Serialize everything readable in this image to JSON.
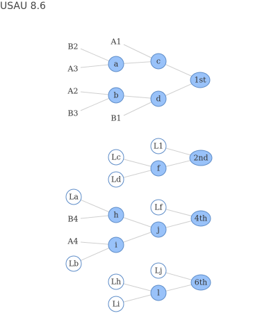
{
  "title": "USAU 8.6",
  "colors": {
    "node_fill": "#99c2f9",
    "node_stroke": "#5d8cc8",
    "edge": "#cfcfcf"
  },
  "nodes": {
    "B2": "B2",
    "A3": "A3",
    "A1": "A1",
    "a": "a",
    "c": "c",
    "A2": "A2",
    "B3": "B3",
    "b": "b",
    "d": "d",
    "B1": "B1",
    "1st": "1st",
    "L1": "L1",
    "Lc": "Lc",
    "f": "f",
    "Ld": "Ld",
    "2nd": "2nd",
    "La": "La",
    "h": "h",
    "B4": "B4",
    "Lf": "Lf",
    "j": "j",
    "4th": "4th",
    "A4": "A4",
    "i": "i",
    "Lb": "Lb",
    "Lj": "Lj",
    "Lh": "Lh",
    "l": "l",
    "Li": "Li",
    "6th": "6th"
  }
}
